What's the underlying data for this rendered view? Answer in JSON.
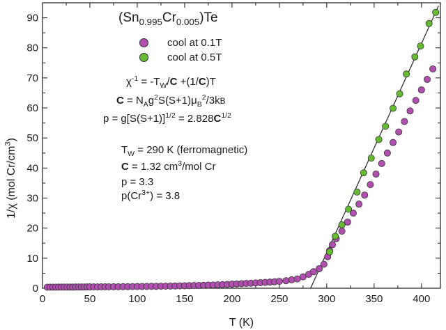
{
  "chart_data": {
    "type": "scatter",
    "xlabel": "T (K)",
    "ylim": [
      0,
      95
    ],
    "xlim": [
      0,
      420
    ],
    "xticks": [
      0,
      50,
      100,
      150,
      200,
      250,
      300,
      350,
      400
    ],
    "yticks": [
      0,
      10,
      20,
      30,
      40,
      50,
      60,
      70,
      80,
      90
    ],
    "grid": false,
    "legend_position": "top-center",
    "series": [
      {
        "name": "cool at 0.1T",
        "color": "#b04fb0",
        "points": [
          [
            5,
            0.35
          ],
          [
            8,
            0.35
          ],
          [
            11,
            0.36
          ],
          [
            14,
            0.36
          ],
          [
            17,
            0.37
          ],
          [
            20,
            0.37
          ],
          [
            23,
            0.38
          ],
          [
            26,
            0.38
          ],
          [
            29,
            0.39
          ],
          [
            32,
            0.39
          ],
          [
            35,
            0.4
          ],
          [
            38,
            0.4
          ],
          [
            41,
            0.41
          ],
          [
            44,
            0.41
          ],
          [
            47,
            0.42
          ],
          [
            50,
            0.42
          ],
          [
            54,
            0.43
          ],
          [
            58,
            0.44
          ],
          [
            62,
            0.45
          ],
          [
            66,
            0.46
          ],
          [
            70,
            0.47
          ],
          [
            75,
            0.48
          ],
          [
            80,
            0.5
          ],
          [
            85,
            0.51
          ],
          [
            90,
            0.53
          ],
          [
            95,
            0.55
          ],
          [
            100,
            0.57
          ],
          [
            105,
            0.59
          ],
          [
            110,
            0.61
          ],
          [
            115,
            0.63
          ],
          [
            120,
            0.65
          ],
          [
            125,
            0.68
          ],
          [
            130,
            0.7
          ],
          [
            135,
            0.73
          ],
          [
            140,
            0.76
          ],
          [
            145,
            0.79
          ],
          [
            150,
            0.82
          ],
          [
            155,
            0.86
          ],
          [
            160,
            0.9
          ],
          [
            165,
            0.94
          ],
          [
            170,
            0.98
          ],
          [
            175,
            1.03
          ],
          [
            180,
            1.08
          ],
          [
            185,
            1.14
          ],
          [
            190,
            1.2
          ],
          [
            195,
            1.27
          ],
          [
            200,
            1.35
          ],
          [
            205,
            1.43
          ],
          [
            210,
            1.52
          ],
          [
            215,
            1.6
          ],
          [
            220,
            1.68
          ],
          [
            225,
            1.77
          ],
          [
            230,
            1.86
          ],
          [
            235,
            1.95
          ],
          [
            240,
            2.05
          ],
          [
            245,
            2.15
          ],
          [
            250,
            2.3
          ],
          [
            257,
            2.5
          ],
          [
            263,
            2.8
          ],
          [
            269,
            3.1
          ],
          [
            275,
            3.8
          ],
          [
            281,
            4.6
          ],
          [
            286,
            5.5
          ],
          [
            292,
            6.5
          ],
          [
            297,
            8.0
          ],
          [
            301,
            10.5
          ],
          [
            303,
            12.5
          ],
          [
            306,
            14.5
          ],
          [
            310,
            16.5
          ],
          [
            316,
            19
          ],
          [
            322,
            22
          ],
          [
            328,
            25
          ],
          [
            334,
            28
          ],
          [
            340,
            31
          ],
          [
            346,
            34.5
          ],
          [
            352,
            38
          ],
          [
            358,
            41.5
          ],
          [
            364,
            45
          ],
          [
            370,
            48.5
          ],
          [
            376,
            52
          ],
          [
            382,
            55.5
          ],
          [
            388,
            59
          ],
          [
            394,
            62.5
          ],
          [
            400,
            66
          ],
          [
            406,
            69.5
          ],
          [
            412,
            73
          ]
        ]
      },
      {
        "name": "cool at 0.5T",
        "color": "#66bb33",
        "points": [
          [
            303,
            12.1
          ],
          [
            309,
            17.3
          ],
          [
            316,
            21.1
          ],
          [
            323,
            26.3
          ],
          [
            332,
            32.0
          ],
          [
            339,
            38.4
          ],
          [
            347,
            43.3
          ],
          [
            355,
            49.5
          ],
          [
            362,
            53.9
          ],
          [
            370,
            59.9
          ],
          [
            377,
            64.7
          ],
          [
            384,
            71.3
          ],
          [
            393,
            77.0
          ],
          [
            399,
            80.6
          ],
          [
            408,
            88.1
          ],
          [
            415,
            91.8
          ]
        ]
      }
    ],
    "fit_line": {
      "x": [
        283,
        418
      ],
      "y": [
        0,
        94
      ]
    }
  },
  "annotations": {
    "title": {
      "a": "(Sn",
      "b": "0.995",
      "c": "Cr",
      "d": "0.005",
      "e": ")Te"
    },
    "legend": [
      {
        "label": "cool at 0.1T"
      },
      {
        "label": "cool at 0.5T"
      }
    ],
    "formula1": {
      "a": "χ",
      "b": "-1",
      "c": " = -T",
      "d": "W",
      "e": "/",
      "f": "C",
      "g": " +(1/",
      "h": "C",
      "i": ")T"
    },
    "formula2": {
      "a": "C",
      "b": " = N",
      "c": "A",
      "d": "g",
      "e": "2",
      "f": "S(S+1)μ",
      "g": "B",
      "h": "2",
      "i": "/3k",
      "j": "B"
    },
    "formula3": {
      "a": "p = g[S(S+1)]",
      "b": "1/2",
      "c": " = 2.828",
      "d": "C",
      "e": "1/2"
    },
    "param1": {
      "a": "T",
      "b": "W",
      "c": " = 290 K (ferromagnetic)"
    },
    "param2": {
      "a": "C",
      "b": " = 1.32 cm",
      "c": "3",
      "d": "/mol Cr"
    },
    "param3": {
      "a": "p = 3.3"
    },
    "param4": {
      "a": "p(Cr",
      "b": "3+",
      "c": ") = 3.8"
    },
    "ylabel": {
      "a": "1/χ (mol Cr/cm",
      "b": "3",
      "c": ")"
    }
  }
}
